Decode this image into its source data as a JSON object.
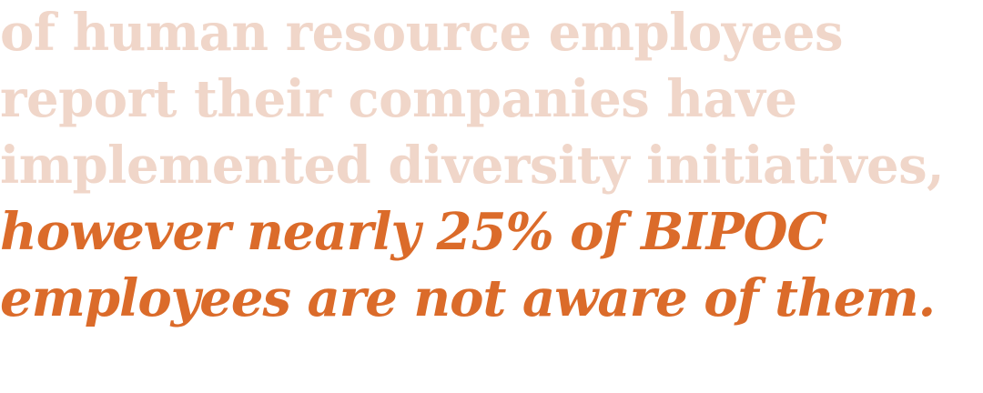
{
  "quote": {
    "muted_lines": [
      "of human resource employees",
      "report their companies have",
      "implemented diversity initiatives,"
    ],
    "accent_lines": [
      "however nearly 25% of BIPOC",
      "employees are not aware of them."
    ]
  },
  "colors": {
    "muted": "#f0d6c9",
    "accent": "#db6b2a",
    "background": "#ffffff"
  }
}
